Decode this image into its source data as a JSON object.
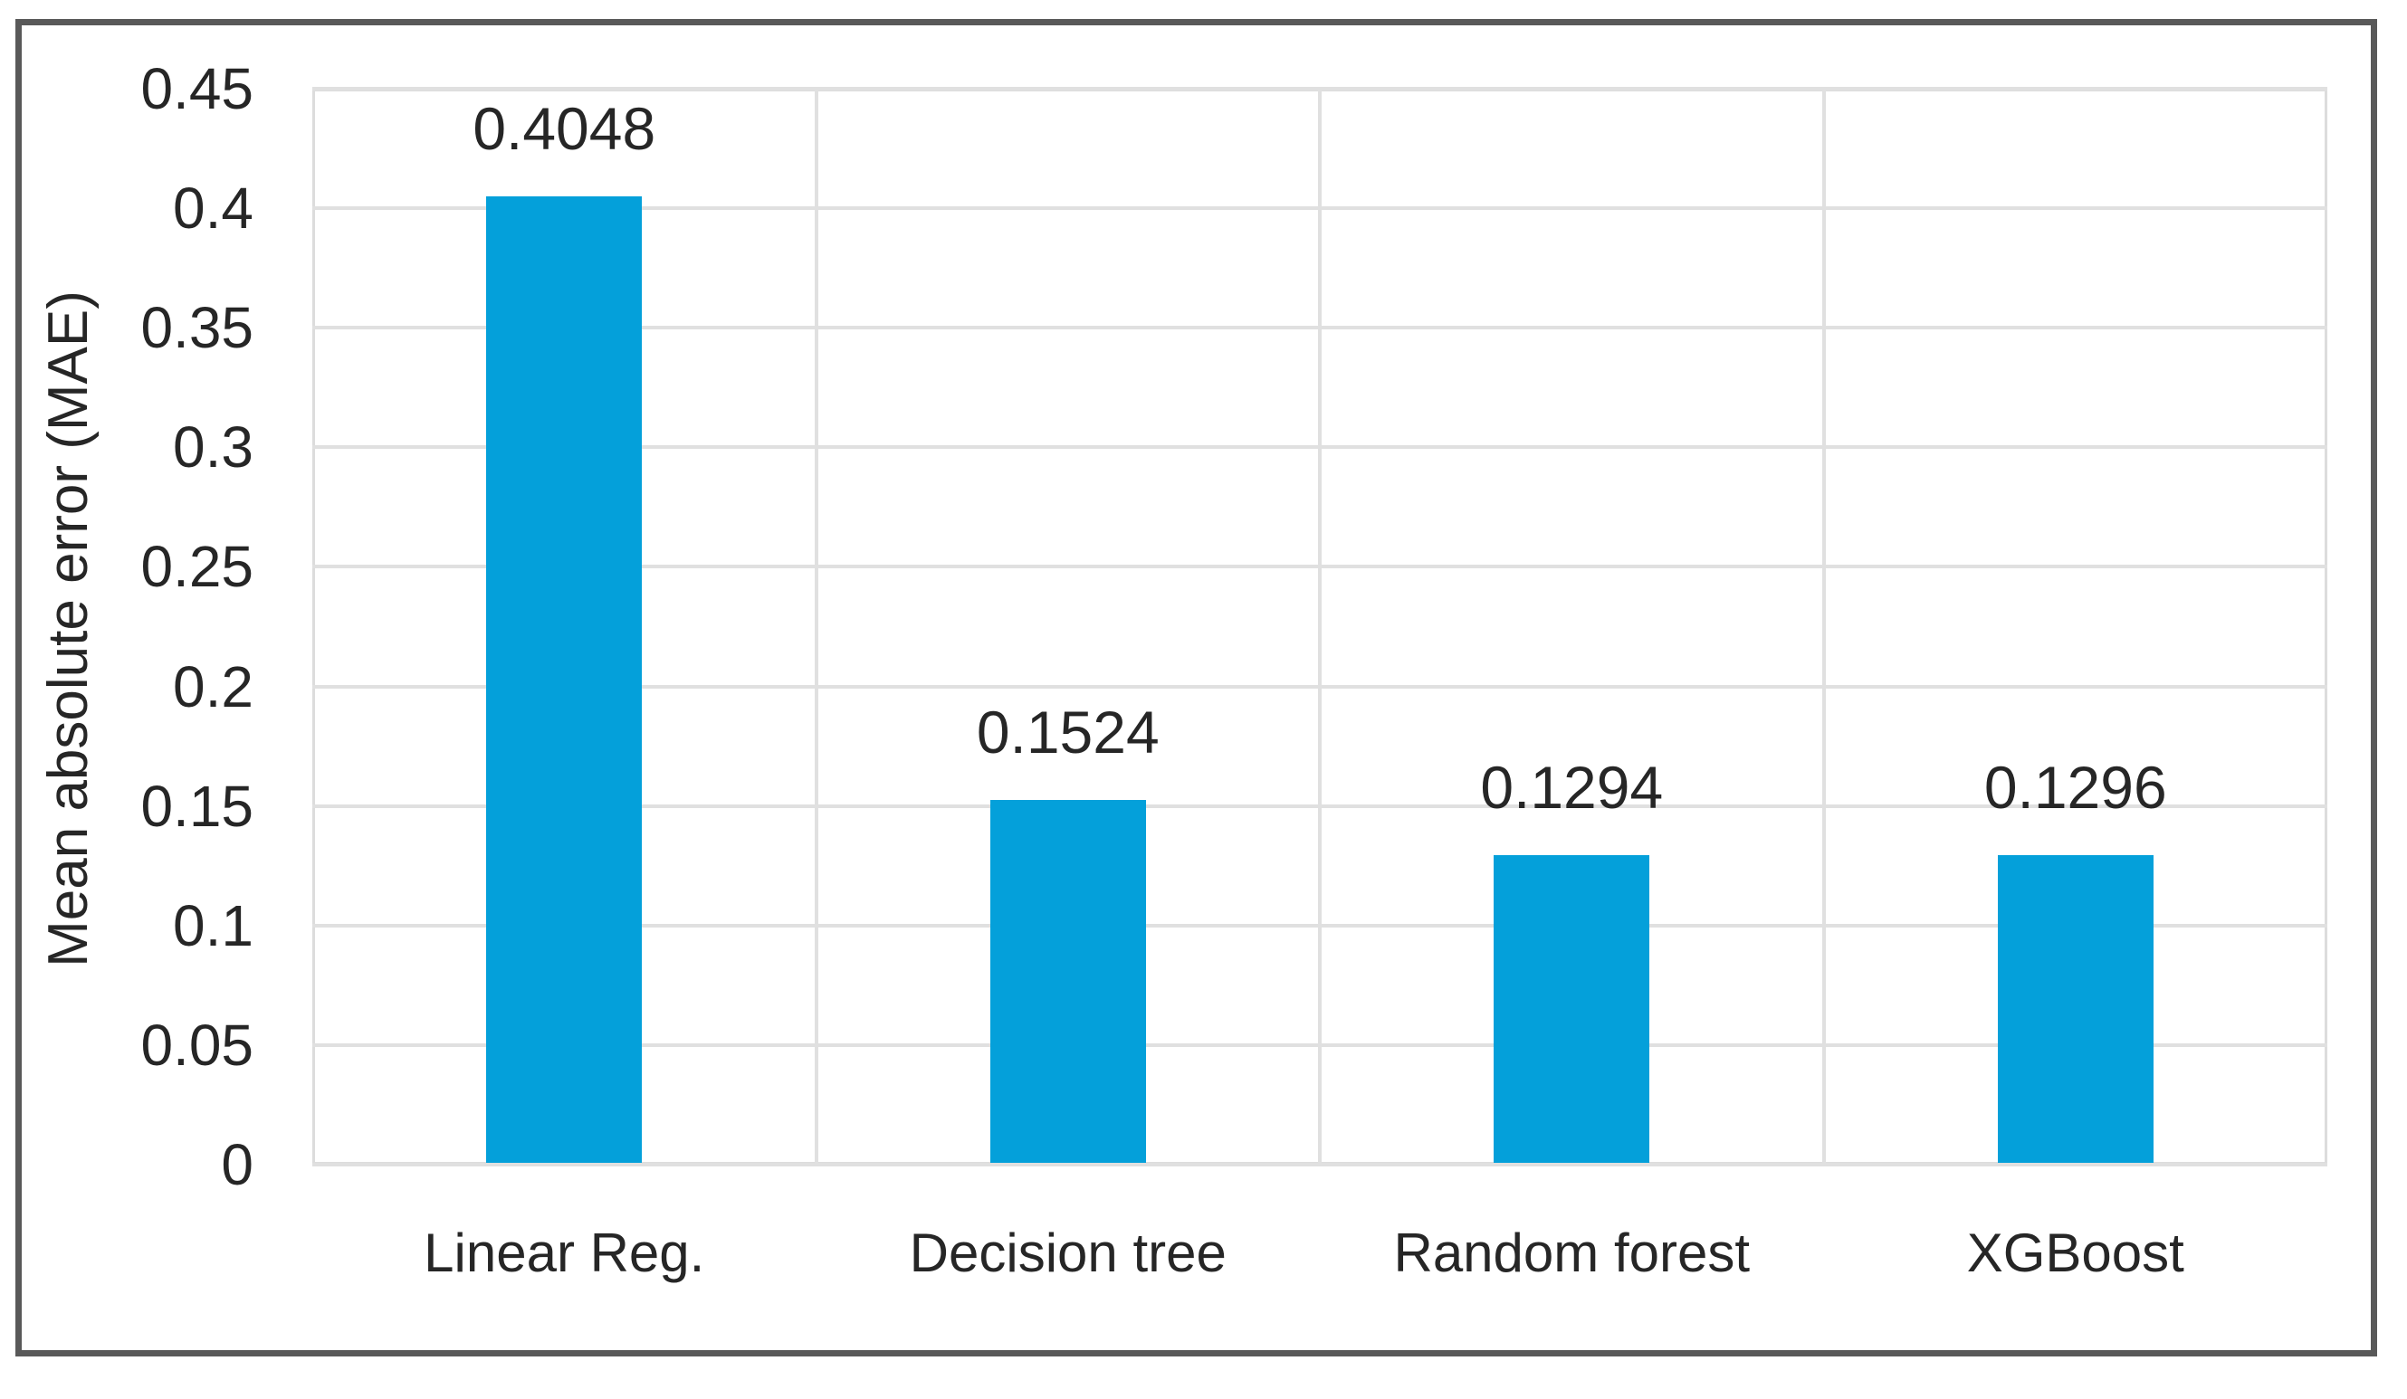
{
  "chart_data": {
    "type": "bar",
    "title": "",
    "xlabel": "",
    "ylabel": "Mean absolute error (MAE)",
    "categories": [
      "Linear Reg.",
      "Decision tree",
      "Random forest",
      "XGBoost"
    ],
    "values": [
      0.4048,
      0.1524,
      0.1294,
      0.1296
    ],
    "value_labels": [
      "0.4048",
      "0.1524",
      "0.1294",
      "0.1296"
    ],
    "series_name": "Mean absolute error (MAE)",
    "ylim": [
      0,
      0.45
    ],
    "yticks": [
      {
        "value": 0,
        "label": "0"
      },
      {
        "value": 0.05,
        "label": "0.05"
      },
      {
        "value": 0.1,
        "label": "0.1"
      },
      {
        "value": 0.15,
        "label": "0.15"
      },
      {
        "value": 0.2,
        "label": "0.2"
      },
      {
        "value": 0.25,
        "label": "0.25"
      },
      {
        "value": 0.3,
        "label": "0.3"
      },
      {
        "value": 0.35,
        "label": "0.35"
      },
      {
        "value": 0.4,
        "label": "0.4"
      },
      {
        "value": 0.45,
        "label": "0.45"
      }
    ],
    "grid": "horizontal-and-vertical",
    "legend_position": "none"
  },
  "colors": {
    "bar_fill": "#04a0da",
    "gridline": "#e0e0e0",
    "plot_border": "#dcdcdc",
    "outer_border": "#595959",
    "text": "#262626",
    "background": "#ffffff"
  }
}
